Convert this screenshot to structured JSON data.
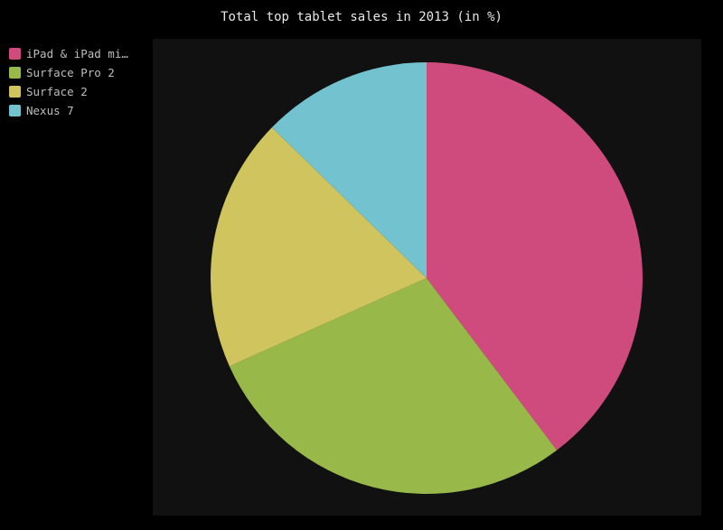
{
  "chart_data": {
    "type": "pie",
    "title": "Total top tablet sales in 2013 (in %)",
    "categories": [
      "iPad & iPad mi…",
      "Surface Pro 2",
      "Surface 2",
      "Nexus 7"
    ],
    "values": [
      39.7,
      28.6,
      19.0,
      12.7
    ],
    "colors": [
      "#d04b7d",
      "#98b94a",
      "#cfc45d",
      "#72c2cf"
    ],
    "legend_position": "top-left",
    "background": "#000000",
    "plot_background": "#111111"
  }
}
